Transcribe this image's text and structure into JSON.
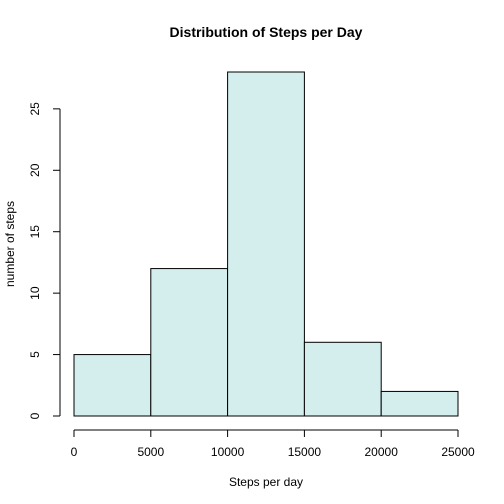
{
  "chart_data": {
    "type": "bar",
    "title": "Distribution of Steps per Day",
    "xlabel": "Steps per day",
    "ylabel": "number of steps",
    "bins": [
      {
        "start": 0,
        "end": 5000,
        "count": 5
      },
      {
        "start": 5000,
        "end": 10000,
        "count": 12
      },
      {
        "start": 10000,
        "end": 15000,
        "count": 28
      },
      {
        "start": 15000,
        "end": 20000,
        "count": 6
      },
      {
        "start": 20000,
        "end": 25000,
        "count": 2
      }
    ],
    "xlim": [
      0,
      25000
    ],
    "ylim": [
      0,
      28
    ],
    "xticks": [
      0,
      5000,
      10000,
      15000,
      20000,
      25000
    ],
    "yticks": [
      0,
      5,
      10,
      15,
      20,
      25
    ],
    "bar_color": "#d4eded",
    "grid": false,
    "legend": "none"
  }
}
